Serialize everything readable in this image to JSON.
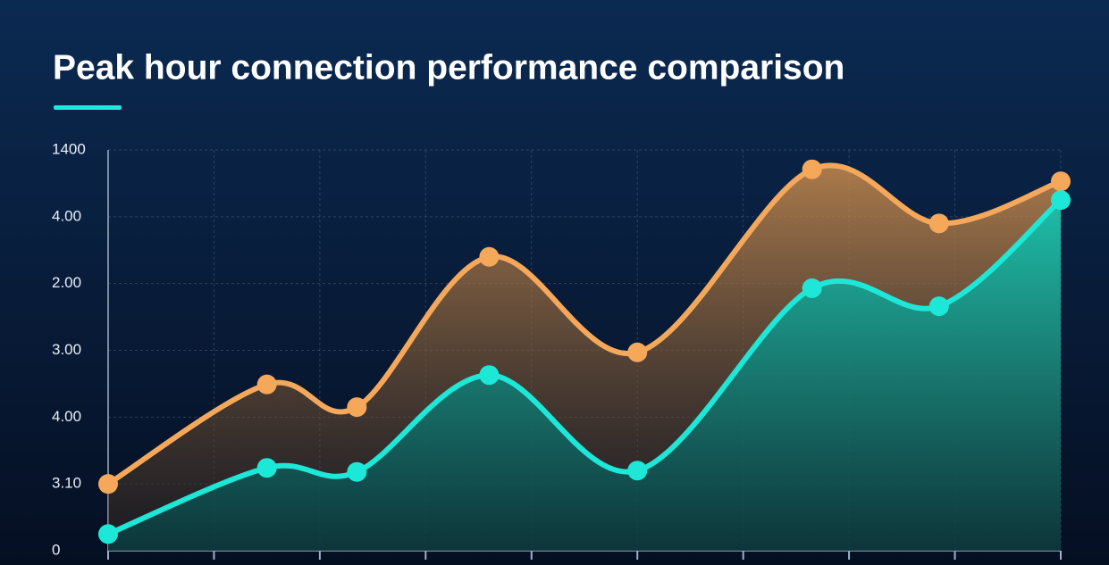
{
  "chart_data": {
    "type": "line",
    "title": "Peak hour connection performance comparison",
    "x": [
      0,
      1.5,
      2.35,
      3.6,
      5,
      6.65,
      7.85,
      9
    ],
    "xlim": [
      0,
      9
    ],
    "xticks": [
      0,
      1,
      2,
      3,
      4,
      5,
      6,
      7,
      8,
      9
    ],
    "ylim": [
      0,
      6
    ],
    "yticks": [
      0,
      {
        "value": 1,
        "label": "3.10"
      },
      {
        "value": 2,
        "label": "4.00"
      },
      {
        "value": 3,
        "label": "3.00"
      },
      {
        "value": 4,
        "label": "2.00"
      },
      {
        "value": 5,
        "label": "4.00"
      },
      {
        "value": 6,
        "label": "1400"
      }
    ],
    "grid": true,
    "series": [
      {
        "color": "#f5a85a",
        "values": [
          1.0,
          2.49,
          2.15,
          4.4,
          2.97,
          5.71,
          4.9,
          5.53
        ]
      },
      {
        "color": "#1de8d8",
        "values": [
          0.25,
          1.24,
          1.18,
          2.63,
          1.2,
          3.93,
          3.66,
          5.25
        ]
      }
    ]
  }
}
